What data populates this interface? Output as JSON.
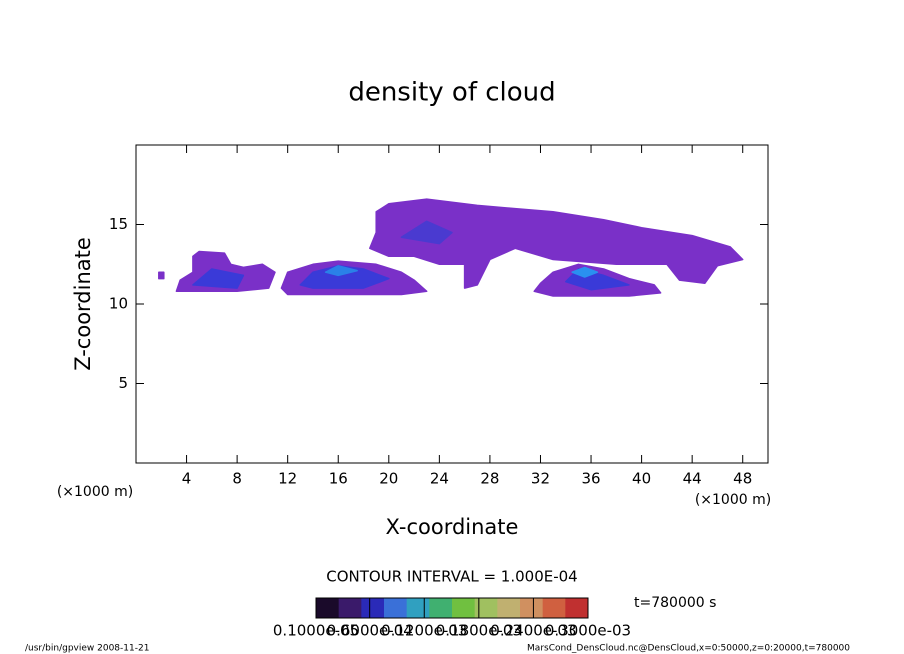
{
  "chart_data": {
    "type": "contour",
    "title": "density of cloud",
    "xlabel": "X-coordinate",
    "ylabel": "Z-coordinate",
    "xunit": "(×1000 m)",
    "yunit": "(×1000 m)",
    "xlim": [
      0,
      50
    ],
    "ylim": [
      0,
      20
    ],
    "xticks": [
      4,
      8,
      12,
      16,
      20,
      24,
      28,
      32,
      36,
      40,
      44,
      48
    ],
    "yticks": [
      5,
      10,
      15
    ],
    "regions": [
      {
        "color": "#7a30c8",
        "x": [
          3.2,
          3.5,
          4.5,
          4.5,
          5,
          7,
          7.5,
          8.5,
          10,
          11,
          10.5,
          8
        ],
        "z": [
          10.8,
          11.5,
          12,
          13,
          13.3,
          13.2,
          12.5,
          12.3,
          12.5,
          12,
          11,
          10.8
        ]
      },
      {
        "color": "#3a3ad8",
        "x": [
          4.5,
          6,
          8.5,
          8
        ],
        "z": [
          11.2,
          12.2,
          11.8,
          11
        ]
      },
      {
        "color": "#7a30c8",
        "x": [
          11.5,
          12,
          14,
          16,
          19,
          21,
          22,
          23,
          21,
          12
        ],
        "z": [
          11,
          12,
          12.5,
          12.7,
          12.5,
          12,
          11.5,
          10.8,
          10.6,
          10.6
        ]
      },
      {
        "color": "#3a3ad8",
        "x": [
          13,
          14,
          16,
          18,
          20,
          18,
          14
        ],
        "z": [
          11.2,
          12,
          12.4,
          12.2,
          11.6,
          11,
          11
        ]
      },
      {
        "color": "#2a80e8",
        "x": [
          15,
          16,
          17.5,
          16
        ],
        "z": [
          12,
          12.4,
          12.1,
          11.8
        ]
      },
      {
        "color": "#7a30c8",
        "x": [
          18.5,
          19,
          19,
          20,
          23,
          27,
          30,
          33,
          37,
          40,
          44,
          47,
          48,
          46,
          45,
          43,
          42,
          38,
          33,
          30,
          28,
          27,
          26,
          26,
          24,
          22,
          20
        ],
        "z": [
          13.5,
          14.5,
          15.8,
          16.3,
          16.6,
          16.2,
          16,
          15.8,
          15.3,
          14.8,
          14.3,
          13.6,
          12.8,
          12.4,
          11.3,
          11.5,
          12.5,
          12.5,
          12.8,
          13.5,
          12.8,
          11.2,
          11,
          12.5,
          12.5,
          13,
          13
        ]
      },
      {
        "color": "#4a3ad0",
        "x": [
          21,
          23,
          25,
          24
        ],
        "z": [
          14.2,
          15.2,
          14.5,
          13.8
        ]
      },
      {
        "color": "#7a30c8",
        "x": [
          31.5,
          32,
          33,
          35,
          37,
          39,
          41,
          41.5,
          39,
          33
        ],
        "z": [
          10.8,
          11.3,
          12,
          12.5,
          12.2,
          11.6,
          11.2,
          10.7,
          10.5,
          10.5
        ]
      },
      {
        "color": "#3a3ad8",
        "x": [
          34,
          35,
          37,
          39,
          36
        ],
        "z": [
          11.4,
          12.2,
          11.8,
          11.2,
          10.9
        ]
      },
      {
        "color": "#2a90f0",
        "x": [
          34.5,
          35.5,
          36.5,
          35.5
        ],
        "z": [
          12,
          12.3,
          12,
          11.7
        ]
      },
      {
        "color": "#7a30c8",
        "x": [
          1.8,
          2.2,
          2.2,
          1.8
        ],
        "z": [
          11.6,
          11.6,
          12,
          12
        ]
      }
    ],
    "contour_interval": "CONTOUR INTERVAL = 1.000E-04",
    "colorbar": {
      "lim": [
        1e-06,
        0.0003
      ],
      "colors": [
        "#1a0a2a",
        "#3a1a6a",
        "#2a2ab8",
        "#3a70d8",
        "#30a0c0",
        "#40b070",
        "#70c040",
        "#a0c060",
        "#c0b070",
        "#d09060",
        "#d06040",
        "#c03030"
      ],
      "ticks": [
        {
          "value": 1e-06,
          "label": "0.1000e-05"
        },
        {
          "value": 6e-05,
          "label": "0.6000e-04"
        },
        {
          "value": 0.00012,
          "label": "0.1200e-03"
        },
        {
          "value": 0.00018,
          "label": "0.1800e-03"
        },
        {
          "value": 0.00024,
          "label": "0.2400e-03"
        },
        {
          "value": 0.0003,
          "label": "0.3000e-03"
        }
      ]
    },
    "time_label": "t=780000 s",
    "footer_left": "/usr/bin/gpview   2008-11-21",
    "footer_right": "MarsCond_DensCloud.nc@DensCloud,x=0:50000,z=0:20000,t=780000"
  }
}
